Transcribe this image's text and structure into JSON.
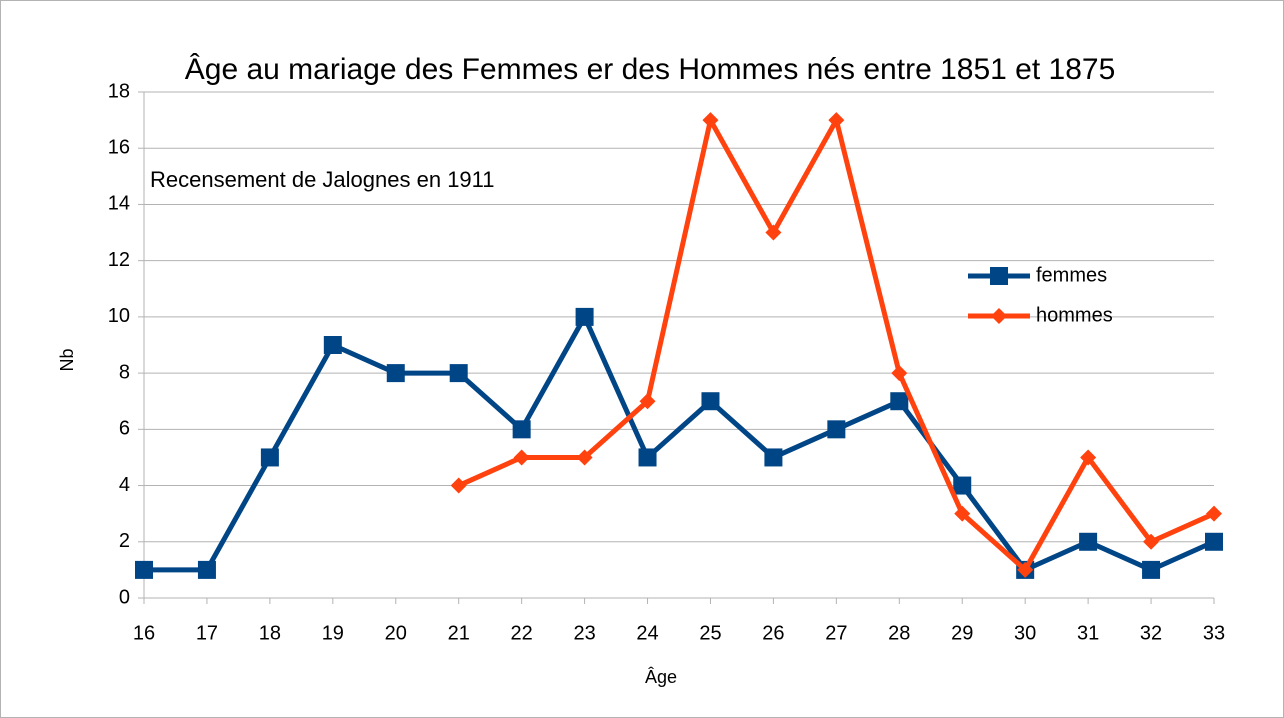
{
  "chart_data": {
    "type": "line",
    "title": "Âge au mariage des Femmes er des Hommes nés entre 1851 et 1875",
    "annotation": "Recensement de Jalognes en 1911",
    "x_label": "Âge",
    "y_label": "Nb",
    "x": [
      16,
      17,
      18,
      19,
      20,
      21,
      22,
      23,
      24,
      25,
      26,
      27,
      28,
      29,
      30,
      31,
      32,
      33
    ],
    "series": [
      {
        "name": "femmes",
        "color": "#004586",
        "marker": "square",
        "values": [
          1,
          1,
          5,
          9,
          8,
          8,
          6,
          10,
          5,
          7,
          5,
          6,
          7,
          4,
          1,
          2,
          1,
          2
        ]
      },
      {
        "name": "hommes",
        "color": "#ff420e",
        "marker": "diamond",
        "values": [
          null,
          null,
          null,
          null,
          null,
          4,
          5,
          5,
          7,
          17,
          13,
          17,
          8,
          3,
          1,
          5,
          2,
          3
        ]
      }
    ],
    "xlim": [
      16,
      33
    ],
    "xticks": [
      16,
      17,
      18,
      19,
      20,
      21,
      22,
      23,
      24,
      25,
      26,
      27,
      28,
      29,
      30,
      31,
      32,
      33
    ],
    "ylim": [
      0,
      18
    ],
    "yticks": [
      0,
      2,
      4,
      6,
      8,
      10,
      12,
      14,
      16,
      18
    ],
    "grid": true,
    "legend": "right"
  }
}
